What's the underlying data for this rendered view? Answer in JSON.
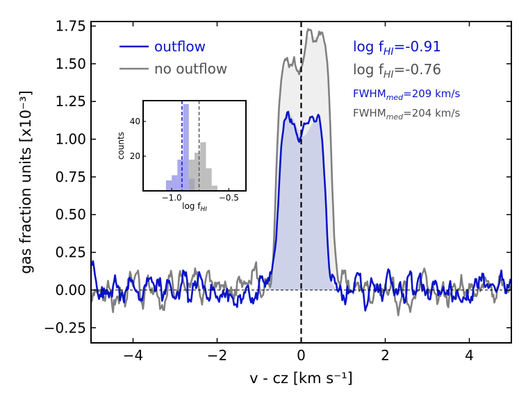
{
  "chart_data": {
    "type": "line",
    "xlabel": "v - cz [km s⁻¹]",
    "ylabel": "gas fraction units [x10⁻³]",
    "xlim": [
      -5,
      5
    ],
    "ylim": [
      -0.35,
      1.78
    ],
    "xticks": [
      -4,
      -2,
      0,
      2,
      4
    ],
    "xtick_labels": [
      "−4",
      "−2",
      "0",
      "2",
      "4"
    ],
    "yticks": [
      -0.25,
      0.0,
      0.25,
      0.5,
      0.75,
      1.0,
      1.25,
      1.5,
      1.75
    ],
    "ytick_labels": [
      "−0.25",
      "0.00",
      "0.25",
      "0.50",
      "0.75",
      "1.00",
      "1.25",
      "1.50",
      "1.75"
    ],
    "zero_line": 0.0,
    "center_line": 0.0,
    "legend": {
      "placement": "top-left",
      "entries": [
        {
          "label": "outflow",
          "color": "#0a14c8"
        },
        {
          "label": "no outflow",
          "color": "#808080"
        }
      ]
    },
    "series": [
      {
        "name": "outflow",
        "color": "#0a14c8",
        "fill": "#c8cce8",
        "profile": {
          "kind": "double-horn",
          "left_edge": -0.55,
          "right_edge": 0.58,
          "left_peak": -0.28,
          "left_peak_value": 1.2,
          "right_peak": 0.38,
          "right_peak_value": 1.16,
          "mid_value": 1.02,
          "noise_rms": 0.08,
          "seed": 7
        }
      },
      {
        "name": "no outflow",
        "color": "#808080",
        "fill": "#ececec",
        "profile": {
          "kind": "double-horn",
          "left_edge": -0.6,
          "right_edge": 0.72,
          "left_peak": -0.28,
          "left_peak_value": 1.5,
          "right_peak": 0.12,
          "right_peak_value": 1.68,
          "mid_value": 1.45,
          "noise_rms": 0.08,
          "seed": 23
        }
      }
    ],
    "annotations": {
      "outflow_logf_base": "log f",
      "outflow_logf_sub": "HI",
      "outflow_logf_value": "=-0.91",
      "outflow_color": "#0a14c8",
      "nooutflow_logf_base": "log f",
      "nooutflow_logf_sub": "HI",
      "nooutflow_logf_value": "=-0.76",
      "nooutflow_color": "#505050",
      "outflow_fwhm_base": "FWHM",
      "outflow_fwhm_sub": "med",
      "outflow_fwhm_value": "=209 km/s",
      "nooutflow_fwhm_base": "FWHM",
      "nooutflow_fwhm_sub": "med",
      "nooutflow_fwhm_value": "=204 km/s"
    },
    "inset": {
      "type": "histogram",
      "xlim": [
        -1.25,
        -0.35
      ],
      "ylim": [
        0,
        52
      ],
      "xticks": [
        -1.0,
        -0.5
      ],
      "xtick_labels": [
        "−1.0",
        "−0.5"
      ],
      "yticks": [
        20,
        40
      ],
      "ytick_labels": [
        "20",
        "40"
      ],
      "ylabel": "counts",
      "xlabel_base": "log f",
      "xlabel_sub": "HI",
      "bin_width": 0.05,
      "series": [
        {
          "name": "outflow",
          "color": "#8c8ce6",
          "median": -0.91,
          "bins": [
            -1.05,
            -1.0,
            -0.95,
            -0.9,
            -0.85
          ],
          "counts": [
            6,
            9,
            18,
            50,
            7
          ]
        },
        {
          "name": "no outflow",
          "color": "#a8a8a8",
          "median": -0.76,
          "bins": [
            -0.85,
            -0.8,
            -0.75,
            -0.7,
            -0.65
          ],
          "counts": [
            18,
            22,
            28,
            13,
            3
          ]
        }
      ]
    }
  }
}
